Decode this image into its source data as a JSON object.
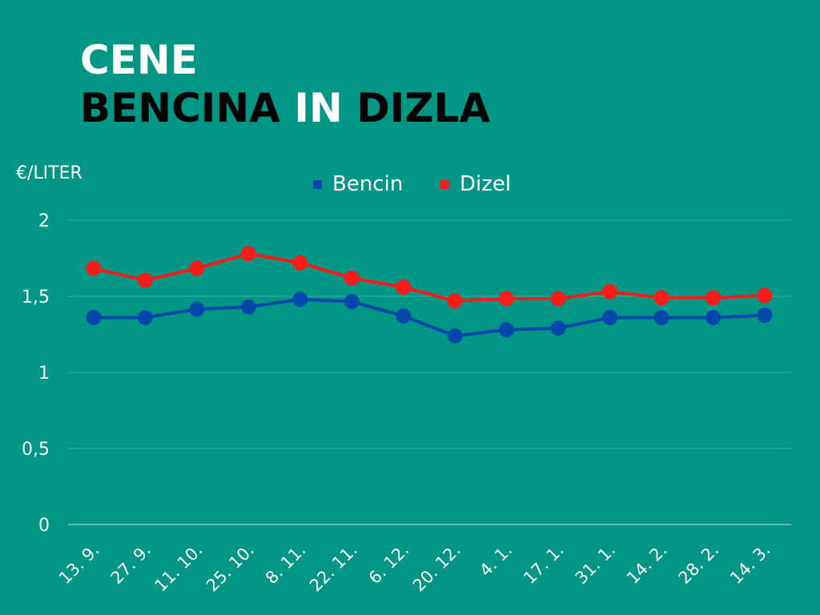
{
  "title": {
    "line1": "CENE",
    "line2_part1": "BENCINA",
    "line2_part2": "IN",
    "line2_part3": "DIZLA"
  },
  "chart_data": {
    "type": "line",
    "ylabel": "€/LITER",
    "ylim": [
      0,
      2
    ],
    "yticks": [
      "0",
      "0,5",
      "1",
      "1,5",
      "2"
    ],
    "ytick_values": [
      0,
      0.5,
      1,
      1.5,
      2
    ],
    "grid": true,
    "legend": "top",
    "categories": [
      "13. 9.",
      "27. 9.",
      "11. 10.",
      "25. 10.",
      "8. 11.",
      "22. 11.",
      "6. 12.",
      "20. 12.",
      "4. 1.",
      "17. 1.",
      "31. 1.",
      "14. 2.",
      "28. 2.",
      "14. 3."
    ],
    "series": [
      {
        "name": "Bencin",
        "color": "#0047ab",
        "values": [
          1.36,
          1.36,
          1.415,
          1.43,
          1.48,
          1.465,
          1.37,
          1.24,
          1.28,
          1.29,
          1.36,
          1.36,
          1.36,
          1.375
        ]
      },
      {
        "name": "Dizel",
        "color": "#ff1a1a",
        "values": [
          1.684,
          1.605,
          1.684,
          1.78,
          1.72,
          1.62,
          1.56,
          1.47,
          1.485,
          1.485,
          1.53,
          1.49,
          1.49,
          1.505
        ]
      }
    ]
  }
}
